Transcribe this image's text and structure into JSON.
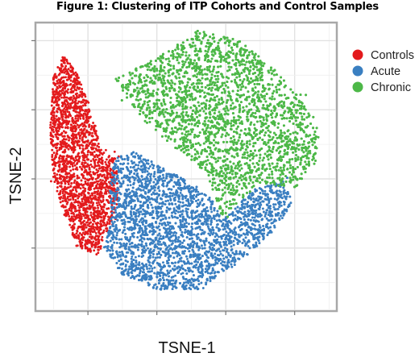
{
  "title": "Figure 1: Clustering of ITP Cohorts and Control Samples",
  "chart_data": {
    "type": "scatter",
    "title": "Figure 1: Clustering of ITP Cohorts and Control Samples",
    "xlabel": "TSNE-1",
    "ylabel": "TSNE-2",
    "xlim": [
      -45,
      42
    ],
    "ylim": [
      -38,
      45
    ],
    "xticks": [
      -30,
      -10,
      10,
      30
    ],
    "yticks": [
      -20,
      0,
      20,
      40
    ],
    "grid": true,
    "legend_position": "right",
    "series": [
      {
        "name": "Controls",
        "color": "#e31a1c",
        "approx_points": 2000,
        "cluster_outline": [
          [
            -37,
            36
          ],
          [
            -33,
            30
          ],
          [
            -29,
            20
          ],
          [
            -26,
            8
          ],
          [
            -22,
            6
          ],
          [
            -21,
            -5
          ],
          [
            -23,
            -12
          ],
          [
            -27,
            -22
          ],
          [
            -33,
            -20
          ],
          [
            -37,
            -10
          ],
          [
            -40,
            0
          ],
          [
            -41,
            15
          ],
          [
            -40,
            30
          ]
        ]
      },
      {
        "name": "Acute",
        "color": "#3a7fc1",
        "approx_points": 4500,
        "cluster_outline": [
          [
            -22,
            6
          ],
          [
            -16,
            8
          ],
          [
            -10,
            4
          ],
          [
            0,
            -1
          ],
          [
            6,
            -6
          ],
          [
            9,
            -12
          ],
          [
            18,
            -3
          ],
          [
            26,
            -1
          ],
          [
            30,
            -6
          ],
          [
            24,
            -15
          ],
          [
            14,
            -24
          ],
          [
            2,
            -32
          ],
          [
            -10,
            -32
          ],
          [
            -20,
            -28
          ],
          [
            -25,
            -20
          ],
          [
            -23,
            -10
          ],
          [
            -24,
            -2
          ]
        ]
      },
      {
        "name": "Chronic",
        "color": "#4db848",
        "approx_points": 7500,
        "cluster_outline": [
          [
            -22,
            29
          ],
          [
            -10,
            35
          ],
          [
            2,
            43
          ],
          [
            14,
            40
          ],
          [
            25,
            31
          ],
          [
            32,
            23
          ],
          [
            38,
            14
          ],
          [
            36,
            4
          ],
          [
            30,
            -3
          ],
          [
            20,
            -1
          ],
          [
            9,
            -11
          ],
          [
            4,
            2
          ],
          [
            -6,
            10
          ],
          [
            -14,
            17
          ],
          [
            -19,
            24
          ]
        ]
      }
    ]
  }
}
